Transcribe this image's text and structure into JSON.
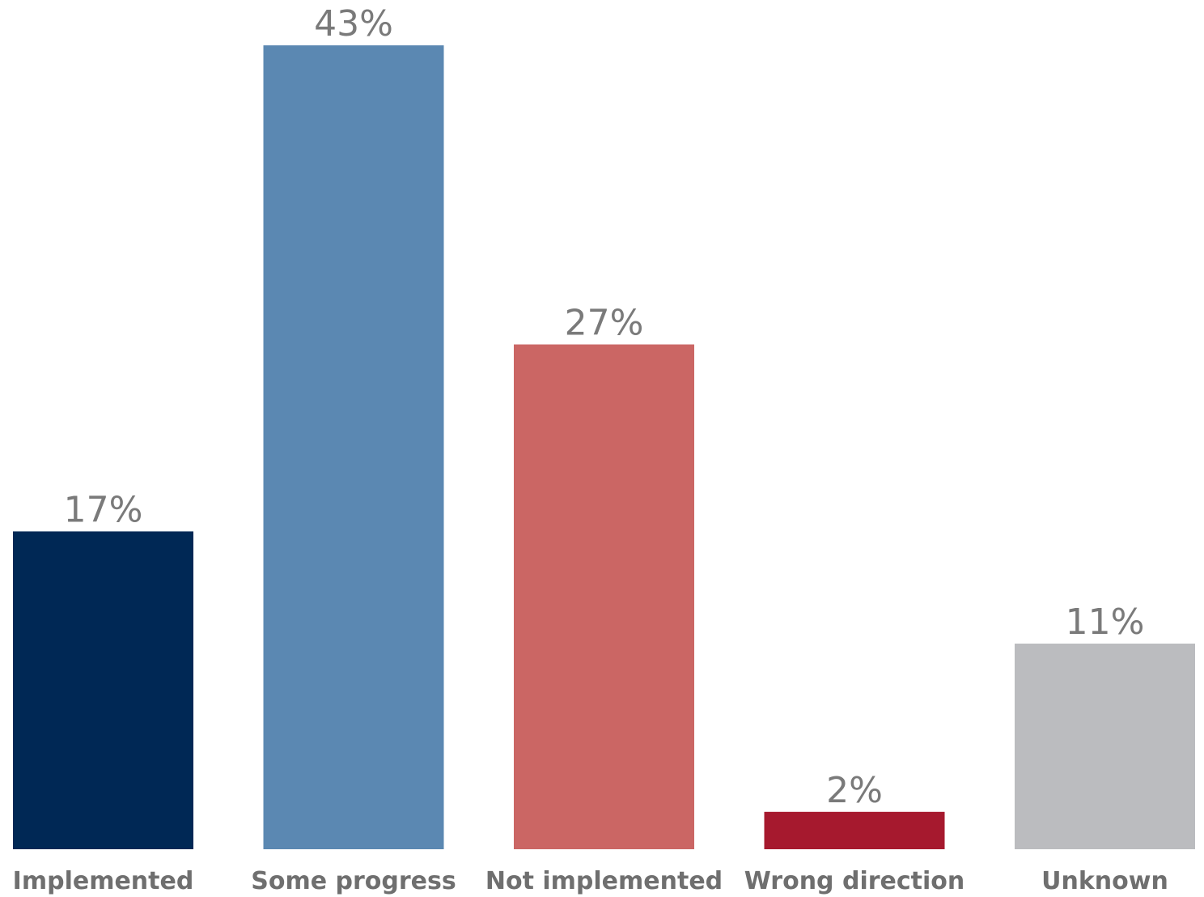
{
  "chart_data": {
    "type": "bar",
    "categories": [
      "Implemented",
      "Some progress",
      "Not implemented",
      "Wrong direction",
      "Unknown"
    ],
    "values": [
      17,
      43,
      27,
      2,
      11
    ],
    "value_labels": [
      "17%",
      "43%",
      "27%",
      "2%",
      "11%"
    ],
    "colors": [
      "#002855",
      "#5b88b2",
      "#cb6664",
      "#a6192e",
      "#bbbcbf"
    ],
    "unit": "%",
    "ylim": [
      0,
      43
    ],
    "grid": false,
    "legend": "none"
  }
}
